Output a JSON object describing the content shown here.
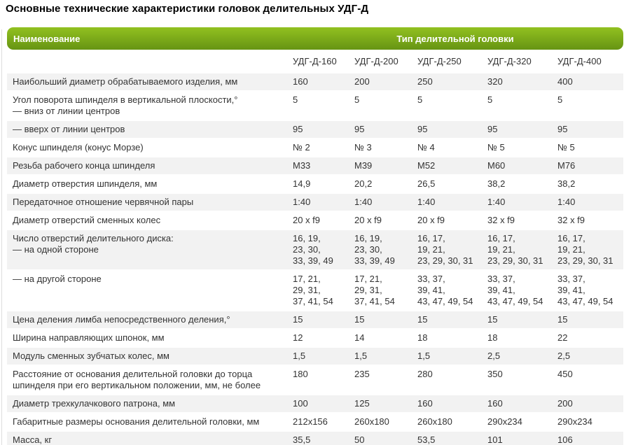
{
  "page_title": "Основные технические характеристики головок делительных УДГ-Д",
  "table": {
    "header": {
      "name_col": "Наименование",
      "group_col": "Тип делительной головки"
    },
    "columns": [
      "УДГ-Д-160",
      "УДГ-Д-200",
      "УДГ-Д-250",
      "УДГ-Д-320",
      "УДГ-Д-400"
    ],
    "rows": [
      {
        "label": "Наибольший диаметр обрабатываемого изделия, мм",
        "values": [
          "160",
          "200",
          "250",
          "320",
          "400"
        ]
      },
      {
        "label": "Угол поворота шпинделя в вертикальной плоскости,°\n— вниз от линии центров",
        "values": [
          "5",
          "5",
          "5",
          "5",
          "5"
        ]
      },
      {
        "label": "— вверх от линии центров",
        "values": [
          "95",
          "95",
          "95",
          "95",
          "95"
        ]
      },
      {
        "label": "Конус шпинделя (конус Морзе)",
        "values": [
          "№ 2",
          "№ 3",
          "№ 4",
          "№ 5",
          "№ 5"
        ]
      },
      {
        "label": "Резьба рабочего конца шпинделя",
        "values": [
          "М33",
          "М39",
          "М52",
          "М60",
          "М76"
        ]
      },
      {
        "label": "Диаметр отверстия шпинделя, мм",
        "values": [
          "14,9",
          "20,2",
          "26,5",
          "38,2",
          "38,2"
        ]
      },
      {
        "label": "Передаточное отношение червячной пары",
        "values": [
          "1:40",
          "1:40",
          "1:40",
          "1:40",
          "1:40"
        ]
      },
      {
        "label": "Диаметр отверстий сменных колес",
        "values": [
          "20 x f9",
          "20 x f9",
          "20 x f9",
          "32 x f9",
          "32 x f9"
        ]
      },
      {
        "label": "Число отверстий делительного диска:\n— на одной стороне",
        "values": [
          "16, 19,\n23, 30,\n33, 39, 49",
          "16, 19,\n23, 30,\n33, 39, 49",
          "16, 17,\n19, 21,\n23, 29, 30, 31",
          "16, 17,\n19, 21,\n23, 29, 30, 31",
          "16, 17,\n19, 21,\n23, 29, 30, 31"
        ]
      },
      {
        "label": "— на другой стороне",
        "values": [
          "17, 21,\n29, 31,\n37, 41, 54",
          "17, 21,\n29, 31,\n37, 41, 54",
          "33, 37,\n39, 41,\n43, 47, 49, 54",
          "33, 37,\n39, 41,\n43, 47, 49, 54",
          "33, 37,\n39, 41,\n43, 47, 49, 54"
        ]
      },
      {
        "label": "Цена деления лимба непосредственного деления,°",
        "values": [
          "15",
          "15",
          "15",
          "15",
          "15"
        ]
      },
      {
        "label": "Ширина направляющих шпонок, мм",
        "values": [
          "12",
          "14",
          "18",
          "18",
          "22"
        ]
      },
      {
        "label": "Модуль сменных зубчатых колес, мм",
        "values": [
          "1,5",
          "1,5",
          "1,5",
          "2,5",
          "2,5"
        ]
      },
      {
        "label": "Расстояние от основания делительной головки до торца шпинделя при его вертикальном положении, мм, не более",
        "values": [
          "180",
          "235",
          "280",
          "350",
          "450"
        ]
      },
      {
        "label": "Диаметр трехкулачкового патрона, мм",
        "values": [
          "100",
          "125",
          "160",
          "160",
          "200"
        ]
      },
      {
        "label": "Габаритные размеры основания делительной головки, мм",
        "values": [
          "212х156",
          "260х180",
          "260х180",
          "290х234",
          "290х234"
        ]
      },
      {
        "label": "Масса, кг",
        "values": [
          "35,5",
          "50",
          "53,5",
          "101",
          "106"
        ]
      }
    ]
  },
  "colors": {
    "header_gradient_top": "#92c120",
    "header_gradient_bottom": "#669413",
    "stripe_row": "#f2f2f2",
    "body_text": "#333333",
    "left_rule": "#dddddd"
  }
}
